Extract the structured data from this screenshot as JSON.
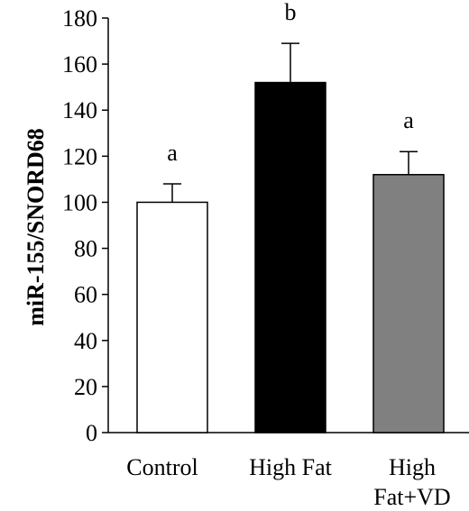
{
  "chart_data": {
    "type": "bar",
    "title": "",
    "xlabel": "",
    "ylabel": "miR-155/SNORD68",
    "ylim": [
      0,
      180
    ],
    "yticks": [
      0,
      20,
      40,
      60,
      80,
      100,
      120,
      140,
      160,
      180
    ],
    "grid": false,
    "categories": [
      [
        "Control"
      ],
      [
        "High Fat"
      ],
      [
        "High",
        "Fat+VD"
      ]
    ],
    "values": [
      100,
      152,
      112
    ],
    "errors": [
      8,
      17,
      10
    ],
    "significance_letters": [
      "a",
      "b",
      "a"
    ],
    "bar_colors": [
      "#ffffff",
      "#000000",
      "#808080"
    ],
    "bar_edge_color": "#000000"
  }
}
